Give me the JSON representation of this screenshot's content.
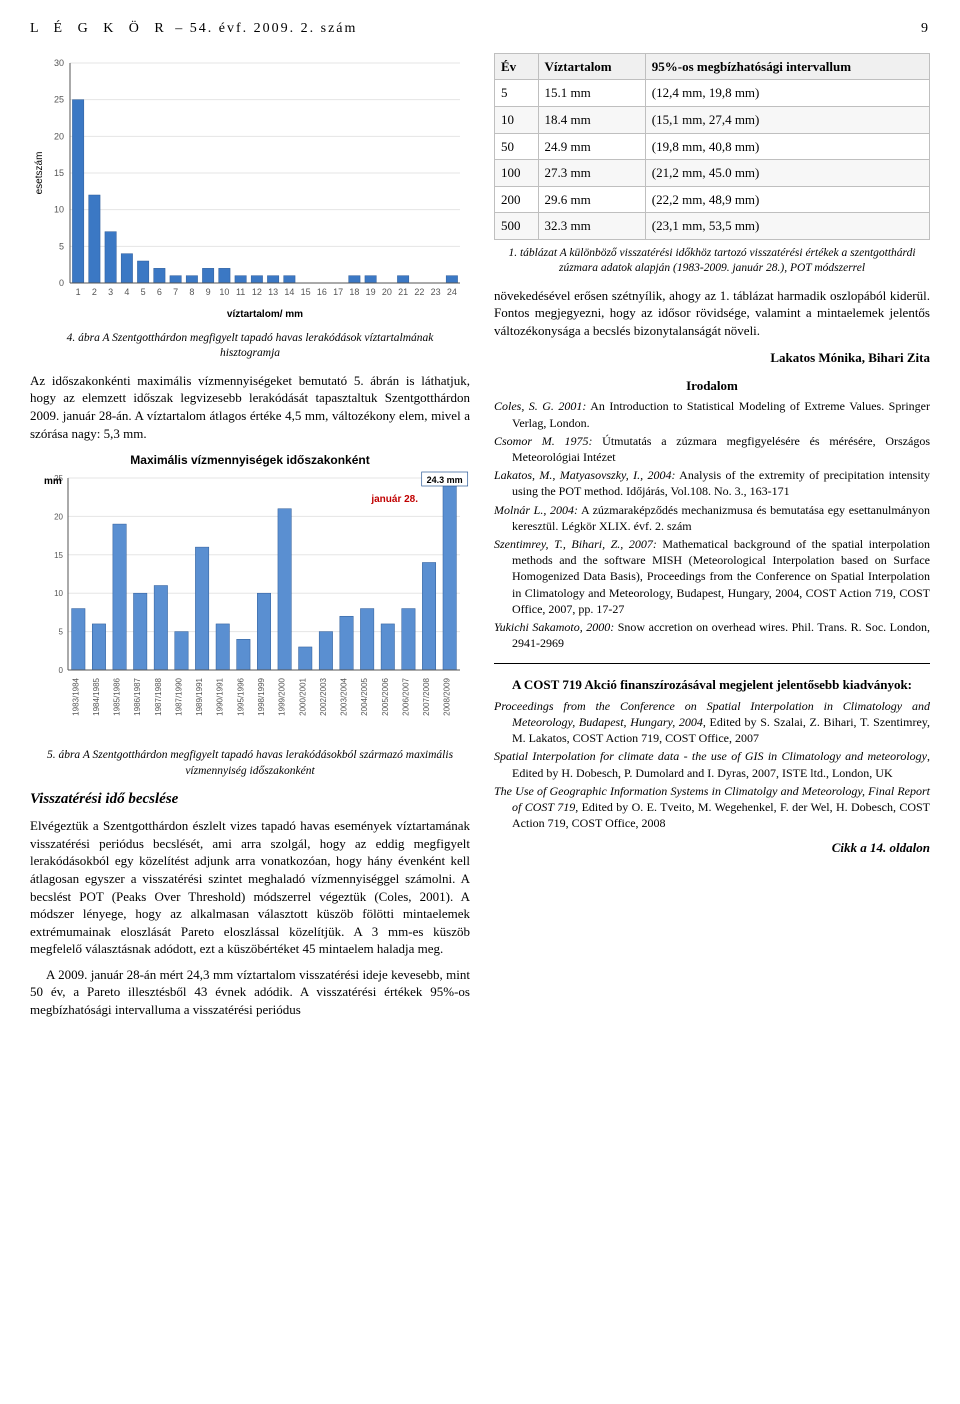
{
  "header": {
    "journal": "L É G K Ö R",
    "issue": "– 54. évf. 2009. 2. szám",
    "page_number": "9"
  },
  "histogram_chart": {
    "type": "bar",
    "y_label": "esetszám",
    "x_label": "víztartalom/  mm",
    "categories": [
      1,
      2,
      3,
      4,
      5,
      6,
      7,
      8,
      9,
      10,
      11,
      12,
      13,
      14,
      15,
      16,
      17,
      18,
      19,
      20,
      21,
      22,
      23,
      24
    ],
    "values": [
      25,
      12,
      7,
      4,
      3,
      2,
      1,
      1,
      2,
      2,
      1,
      1,
      1,
      1,
      0,
      0,
      0,
      1,
      1,
      0,
      1,
      0,
      0,
      1
    ],
    "bar_color": "#3b78c4",
    "bar_border": "#2c5a97",
    "background": "#ffffff",
    "grid_color": "#e5e5e5",
    "axis_color": "#555555",
    "ylim": [
      0,
      30
    ],
    "ytick_step": 5,
    "label_fontsize": 10,
    "axis_fontsize": 9
  },
  "histogram_caption": "4. ábra A Szentgotthárdon megfigyelt tapadó havas lerakódások víztartalmának hisztogramja",
  "left_paragraphs": {
    "p1": "Az időszakonkénti maximális vízmennyiségeket bemutató 5. ábrán is láthatjuk, hogy az elemzett időszak legvizesebb lerakódását tapasztaltuk Szentgotthárdon 2009. január 28-án. A víztartalom átlagos értéke 4,5 mm, változékony elem, mivel a szórása nagy: 5,3 mm."
  },
  "yearly_chart": {
    "type": "bar",
    "title": "Maximális vízmennyiségek időszakonként",
    "y_label": "mm",
    "categories": [
      "1983/1984",
      "1984/1985",
      "1985/1986",
      "1986/1987",
      "1987/1988",
      "1987/1990",
      "1989/1991",
      "1990/1991",
      "1995/1996",
      "1998/1999",
      "1999/2000",
      "2000/2001",
      "2002/2003",
      "2003/2004",
      "2004/2005",
      "2005/2006",
      "2006/2007",
      "2007/2008",
      "2008/2009"
    ],
    "values": [
      8,
      6,
      19,
      10,
      11,
      5,
      16,
      6,
      4,
      10,
      21,
      3,
      5,
      7,
      8,
      6,
      8,
      14,
      24.3
    ],
    "annotation": {
      "label": "24.3 mm",
      "sub": "január 28.",
      "index": 18
    },
    "bar_color": "#5a8fd1",
    "bar_border": "#2c5a97",
    "background": "#ffffff",
    "grid_color": "#e5e5e5",
    "axis_color": "#555555",
    "ylim": [
      0,
      25
    ],
    "ytick_step": 5,
    "label_fontsize": 10,
    "axis_fontsize": 8,
    "title_fontsize": 12
  },
  "yearly_caption": "5. ábra A Szentgotthárdon megfigyelt tapadó havas lerakódásokból származó maximális vízmennyiség időszakonként",
  "section_title": "Visszatérési idő becslése",
  "left_paragraphs_2": {
    "p1": "Elvégeztük a Szentgotthárdon észlelt vizes tapadó havas események víztartamának visszatérési periódus becslését, ami arra szolgál, hogy az eddig megfigyelt lerakódásokból egy közelítést adjunk arra vonatkozóan, hogy hány évenként kell átlagosan egyszer a visszatérési szintet meghaladó vízmennyiséggel számolni. A becslést POT (Peaks Over Threshold) módszerrel végeztük (Coles, 2001). A módszer lényege, hogy az alkalmasan választott küszöb fölötti mintaelemek extrémumainak eloszlását Pareto eloszlással közelítjük. A 3 mm-es küszöb megfelelő választásnak adódott, ezt a küszöbértéket 45 mintaelem haladja meg.",
    "p2": "A 2009. január 28-án mért 24,3 mm víztartalom visszatérési ideje kevesebb, mint 50 év, a Pareto illesztésből 43 évnek adódik. A visszatérési értékek 95%-os megbízhatósági intervalluma a visszatérési periódus"
  },
  "conf_table": {
    "columns": [
      "Év",
      "Víztartalom",
      "95%-os megbízhatósági intervallum"
    ],
    "rows": [
      [
        "5",
        "15.1 mm",
        "(12,4 mm, 19,8 mm)"
      ],
      [
        "10",
        "18.4 mm",
        "(15,1 mm, 27,4 mm)"
      ],
      [
        "50",
        "24.9 mm",
        "(19,8 mm, 40,8 mm)"
      ],
      [
        "100",
        "27.3 mm",
        "(21,2 mm, 45.0 mm)"
      ],
      [
        "200",
        "29.6 mm",
        "(22,2 mm, 48,9 mm)"
      ],
      [
        "500",
        "32.3 mm",
        "(23,1 mm, 53,5 mm)"
      ]
    ]
  },
  "table_caption": "1. táblázat A különböző visszatérési időkhöz tartozó visszatérési értékek a szentgotthárdi zúzmara adatok alapján (1983-2009. január 28.), POT módszerrel",
  "right_paragraphs": {
    "p1": "növekedésével erősen szétnyílik, ahogy az 1. táblázat harmadik oszlopából kiderül. Fontos megjegyezni, hogy az idősor rövidsége, valamint a mintaelemek jelentős változékonysága a becslés bizonytalanságát növeli."
  },
  "authors": "Lakatos Mónika, Bihari Zita",
  "refs_title": "Irodalom",
  "references": [
    "Coles, S. G. 2001: An Introduction to Statistical Modeling of Extreme Values. Springer Verlag, London.",
    "Csomor M. 1975: Útmutatás a zúzmara megfigyelésére és mérésére, Országos Meteorológiai Intézet",
    "Lakatos, M., Matyasovszky, I., 2004: Analysis of the extremity of precipitation intensity using the POT method. Időjárás, Vol.108. No. 3., 163-171",
    "Molnár L., 2004: A zúzmaraképződés mechanizmusa és bemutatása egy esettanulmányon keresztül. Légkör XLIX. évf. 2. szám",
    "Szentimrey, T., Bihari, Z., 2007: Mathematical background of the spatial interpolation methods and the software MISH (Meteorological Interpolation based on Surface Homogenized Data Basis), Proceedings from the Conference on Spatial Interpolation in Climatology and Meteorology, Budapest, Hungary, 2004, COST Action 719, COST Office, 2007, pp. 17-27",
    "Yukichi Sakamoto, 2000: Snow accretion on overhead wires. Phil. Trans. R. Soc. London, 2941-2969"
  ],
  "box": {
    "title": "A COST 719 Akció finanszírozásával megjelent jelentősebb kiadványok:",
    "items": [
      "Proceedings from the Conference on Spatial Interpolation in Climatology and Meteorology, Budapest, Hungary, 2004, Edited by S. Szalai, Z. Bihari, T. Szentimrey, M. Lakatos, COST Action 719, COST Office, 2007",
      "Spatial Interpolation for climate data - the use of GIS in Climatology and meteorology, Edited by H. Dobesch, P. Dumolard and I. Dyras, 2007, ISTE ltd., London, UK",
      "The Use of Geographic Information Systems in Climatolgy and Meteorology, Final Report of COST 719, Edited by O. E. Tveito, M. Wegehenkel, F. der Wel, H. Dobesch, COST Action 719, COST Office, 2008"
    ]
  },
  "cont_note": "Cikk a 14. oldalon"
}
